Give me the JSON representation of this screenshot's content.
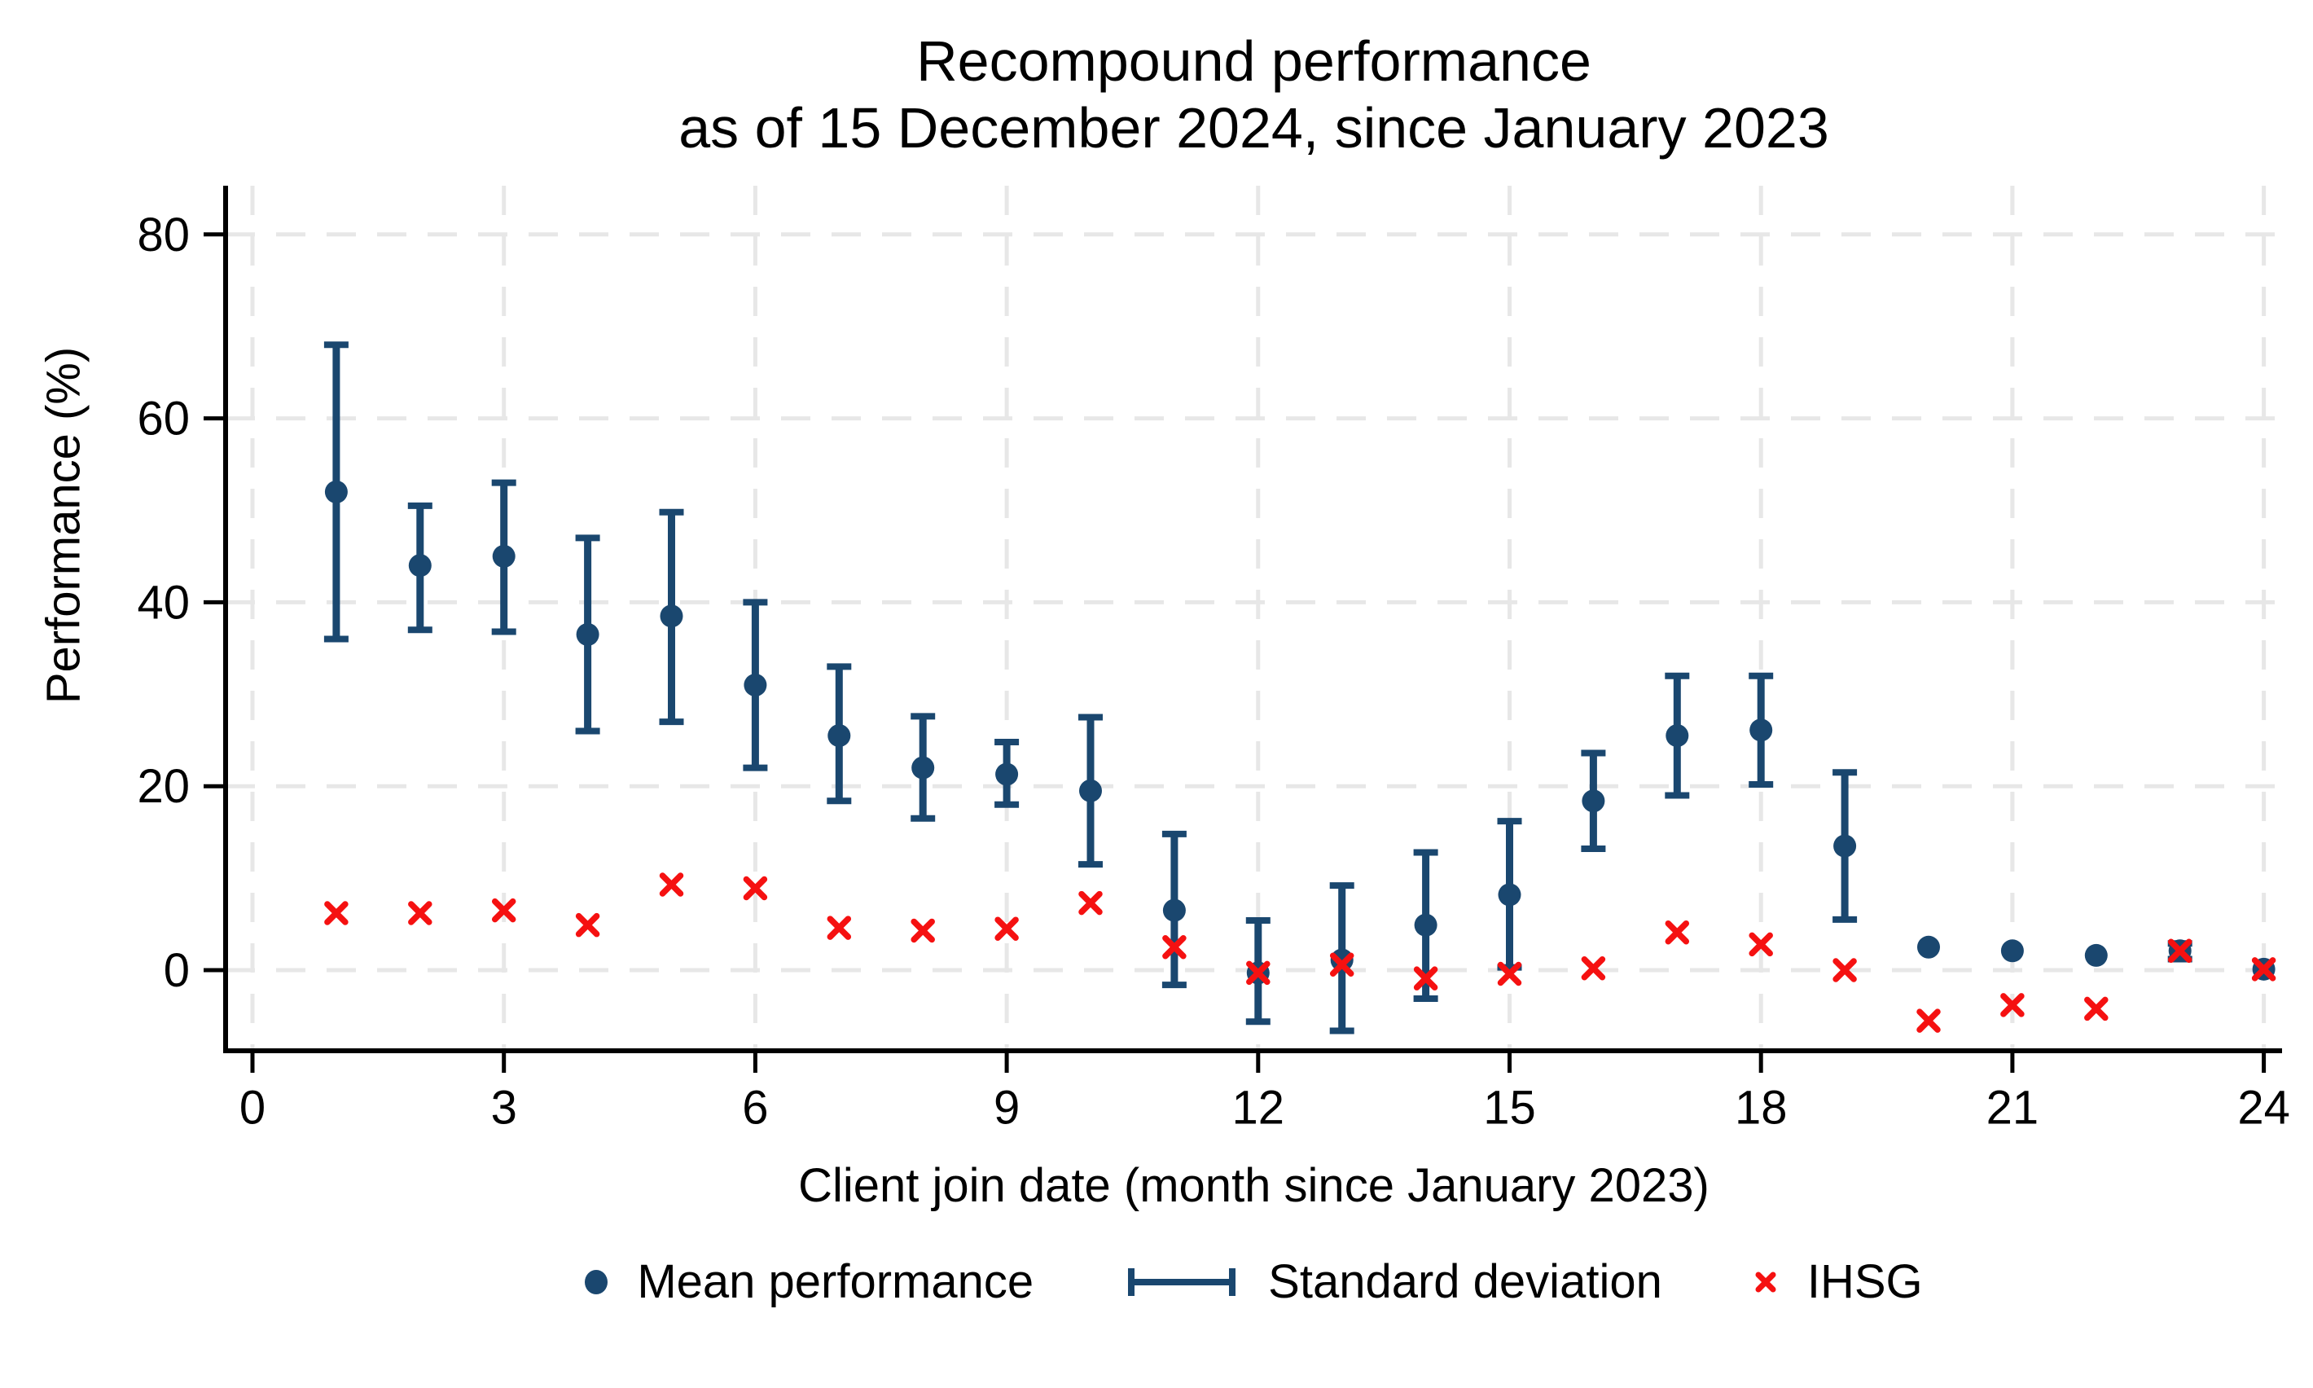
{
  "title": {
    "line1": "Recompound performance",
    "line2": "as of 15 December 2024, since January 2023"
  },
  "axes": {
    "y_label": "Performance (%)",
    "x_label": "Client join date (month since January 2023)",
    "y_ticks": [
      0,
      20,
      40,
      60,
      80
    ],
    "x_ticks": [
      0,
      3,
      6,
      9,
      12,
      15,
      18,
      21,
      24
    ]
  },
  "legend": [
    {
      "label": "Mean performance",
      "marker": "dot"
    },
    {
      "label": "Standard deviation",
      "marker": "errorbar"
    },
    {
      "label": "IHSG",
      "marker": "x"
    }
  ],
  "colors": {
    "mean": "#1a476f",
    "ihsg": "#f51111",
    "grid": "#e7e7e7",
    "axis": "#000000"
  },
  "chart_data": {
    "type": "scatter",
    "title": "Recompound performance as of 15 December 2024, since January 2023",
    "xlabel": "Client join date (month since January 2023)",
    "ylabel": "Performance (%)",
    "xlim": [
      -0.35,
      24.35
    ],
    "ylim": [
      -8.8,
      85.3
    ],
    "grid": "on",
    "legend_position": "bottom",
    "x": [
      1,
      2,
      3,
      4,
      5,
      6,
      7,
      8,
      9,
      10,
      11,
      12,
      13,
      14,
      15,
      16,
      17,
      18,
      19,
      20,
      21,
      22,
      23,
      24
    ],
    "series": [
      {
        "name": "Mean performance",
        "values": [
          52,
          44,
          45,
          36.5,
          38.5,
          31,
          25.5,
          22,
          21.3,
          19.5,
          6.5,
          -0.3,
          1.1,
          4.9,
          8.2,
          18.4,
          25.5,
          26.1,
          13.5,
          2.5,
          2.1,
          1.6,
          2.1,
          0.1
        ]
      },
      {
        "name": "Standard deviation low",
        "values": [
          36,
          37,
          36.8,
          26,
          27,
          22,
          18.4,
          16.5,
          18,
          11.5,
          -1.6,
          -5.6,
          -6.6,
          -3.1,
          0.3,
          13.2,
          19,
          20.2,
          5.5,
          null,
          null,
          null,
          1.2,
          null
        ]
      },
      {
        "name": "Standard deviation high",
        "values": [
          68,
          50.5,
          53,
          47,
          49.8,
          40,
          33,
          27.6,
          24.8,
          27.5,
          14.8,
          5.4,
          9.2,
          12.8,
          16.2,
          23.6,
          32,
          32,
          21.5,
          null,
          null,
          null,
          2.9,
          null
        ]
      },
      {
        "name": "IHSG",
        "values": [
          6.2,
          6.2,
          6.5,
          4.9,
          9.3,
          8.9,
          4.6,
          4.3,
          4.5,
          7.3,
          2.5,
          -0.3,
          0.6,
          -0.9,
          -0.4,
          0.2,
          4.1,
          2.8,
          0,
          -5.5,
          -3.8,
          -4.2,
          2.1,
          0.1
        ]
      }
    ]
  }
}
